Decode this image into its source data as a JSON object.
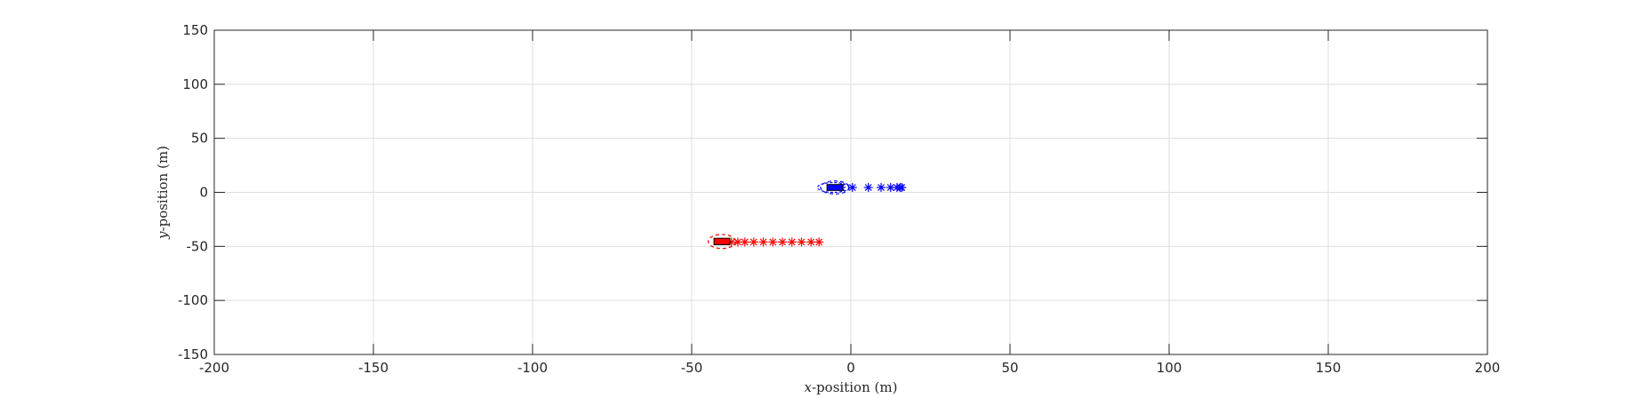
{
  "chart_data": {
    "type": "scatter",
    "title": "",
    "xlabel_var": "x",
    "xlabel_rest": "-position (m)",
    "ylabel_var": "y",
    "ylabel_rest": "-position (m)",
    "xlim": [
      -200,
      200
    ],
    "ylim": [
      -150,
      150
    ],
    "xticks": [
      -200,
      -150,
      -100,
      -50,
      0,
      50,
      100,
      150,
      200
    ],
    "yticks": [
      -150,
      -100,
      -50,
      0,
      50,
      100,
      150
    ],
    "xtick_labels": [
      "-200",
      "-150",
      "-100",
      "-50",
      "0",
      "50",
      "100",
      "150",
      "200"
    ],
    "ytick_labels": [
      "-150",
      "-100",
      "-50",
      "0",
      "50",
      "100",
      "150"
    ],
    "grid": true,
    "legend": false,
    "series": [
      {
        "color": "#ff0000",
        "marker": "asterisk",
        "x": [
          -37.5,
          -35.5,
          -33.3,
          -30.5,
          -27.5,
          -24.5,
          -21.5,
          -18.5,
          -15.5,
          -12.5,
          -10.0
        ],
        "y": [
          -46,
          -46,
          -46,
          -46,
          -46,
          -46,
          -46,
          -46,
          -46,
          -46,
          -46
        ],
        "vehicle": {
          "x": -40.5,
          "y": -45.5,
          "length": 5.0,
          "width": 6.0,
          "color": "#ff0000"
        },
        "uncertainty_ellipse": {
          "cx": -40.5,
          "cy": -45.5,
          "rx": 4.3,
          "ry": 6.5,
          "color": "#ff0000"
        }
      },
      {
        "color": "#0000ff",
        "marker": "asterisk",
        "x": [
          -3.0,
          0.5,
          5.5,
          9.5,
          12.5,
          14.5,
          15.5,
          16.0
        ],
        "y": [
          4.5,
          4.5,
          4.5,
          4.5,
          4.5,
          4.5,
          4.5,
          4.5
        ],
        "vehicle": {
          "x": -5.0,
          "y": 4.5,
          "length": 5.0,
          "width": 5.5,
          "color": "#0000ff"
        },
        "uncertainty_ellipse": {
          "cx": -5.0,
          "cy": 4.5,
          "rx": 4.5,
          "ry": 6.0,
          "color": "#0000ff"
        },
        "outer_ellipse": {
          "cx": -5.5,
          "cy": 4.5,
          "rx": 5.0,
          "ry": 4.5,
          "color": "#0000ff"
        }
      }
    ],
    "colors": {
      "grid": "#dedede",
      "axis": "#262626",
      "background": "#ffffff"
    }
  }
}
